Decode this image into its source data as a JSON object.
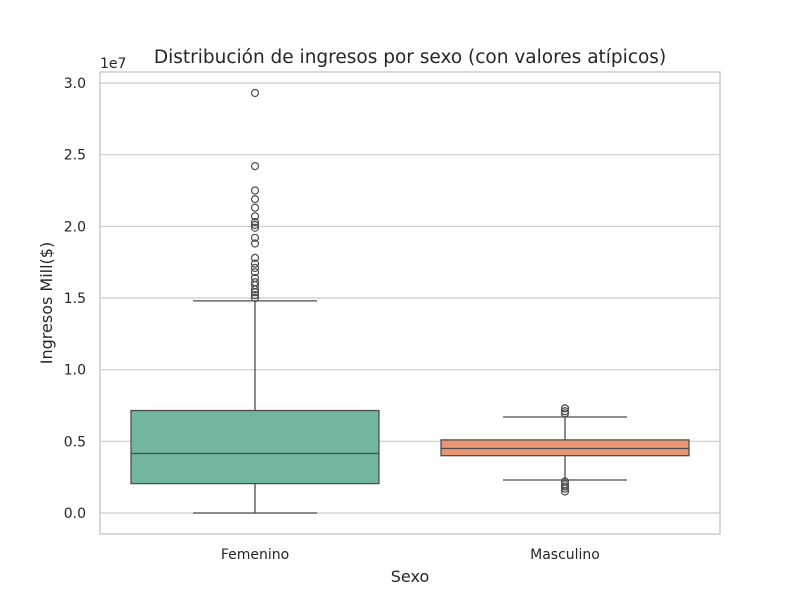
{
  "chart_data": {
    "type": "box",
    "title": "Distribución de ingresos por sexo (con valores atípicos)",
    "xlabel": "Sexo",
    "ylabel": "Ingresos Mill($)",
    "y_offset_label": "1e7",
    "ylim": [
      -1500000,
      30800000
    ],
    "yticks": [
      0,
      5000000,
      10000000,
      15000000,
      20000000,
      25000000,
      30000000
    ],
    "ytick_labels": [
      "0.0",
      "0.5",
      "1.0",
      "1.5",
      "2.0",
      "2.5",
      "3.0"
    ],
    "grid": true,
    "categories": [
      "Femenino",
      "Masculino"
    ],
    "boxes": [
      {
        "category": "Femenino",
        "color": "#72b6a1",
        "whisker_low": 0,
        "q1": 2050000,
        "median": 4150000,
        "q3": 7150000,
        "whisker_high": 14800000,
        "outliers": [
          29300000,
          24200000,
          22500000,
          21900000,
          21300000,
          20700000,
          20300000,
          20100000,
          19900000,
          19200000,
          18800000,
          17800000,
          17400000,
          17100000,
          16800000,
          16400000,
          16100000,
          15900000,
          15600000,
          15400000,
          15200000,
          15000000
        ]
      },
      {
        "category": "Masculino",
        "color": "#e99675",
        "whisker_low": 2300000,
        "q1": 4000000,
        "median": 4500000,
        "q3": 5100000,
        "whisker_high": 6700000,
        "outliers": [
          7300000,
          7100000,
          6950000,
          2200000,
          2000000,
          1850000,
          1700000,
          1500000
        ]
      }
    ],
    "colors": {
      "grid": "#cccccc",
      "spine": "#cccccc",
      "line": "#4d4d4d",
      "text": "#262626"
    }
  }
}
